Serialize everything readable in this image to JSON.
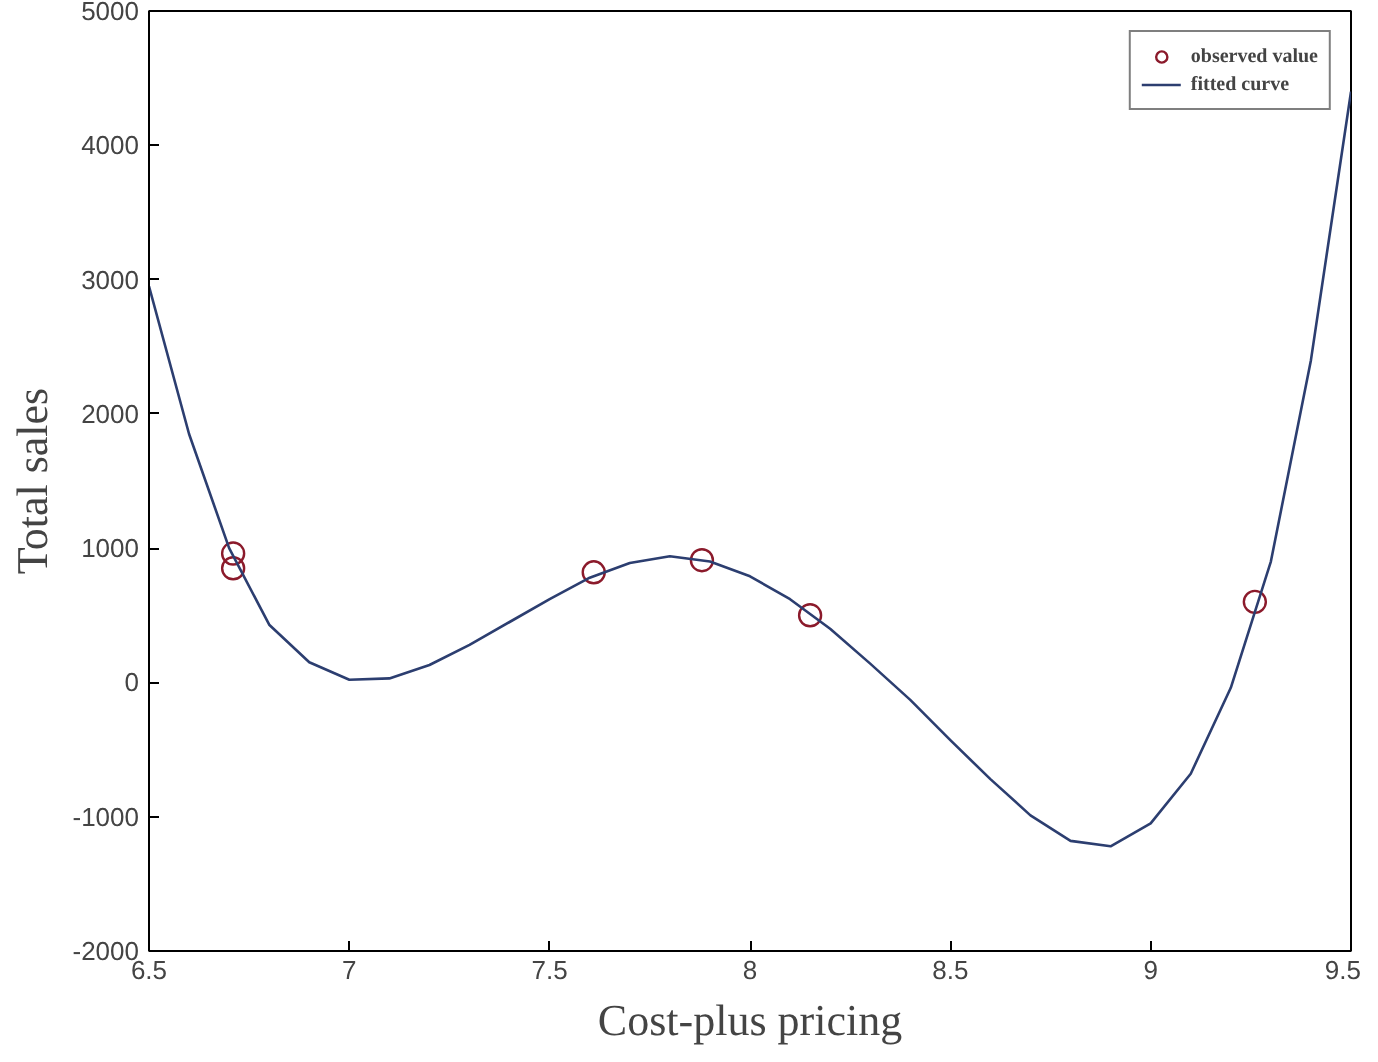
{
  "chart_data": {
    "type": "scatter",
    "xlabel": "Cost-plus pricing",
    "ylabel": "Total sales",
    "xlim": [
      6.5,
      9.5
    ],
    "ylim": [
      -2000,
      5000
    ],
    "xticks": [
      6.5,
      7,
      7.5,
      8,
      8.5,
      9,
      9.5
    ],
    "yticks": [
      -2000,
      -1000,
      0,
      1000,
      2000,
      3000,
      4000,
      5000
    ],
    "grid": false,
    "legend": "top right",
    "series": [
      {
        "name": "observed value",
        "marker": "circle",
        "color": "#8b1a2b",
        "x": [
          6.71,
          6.71,
          7.61,
          7.88,
          8.15,
          9.26
        ],
        "values": [
          960,
          850,
          820,
          910,
          500,
          600
        ]
      },
      {
        "name": "fitted curve",
        "type": "line",
        "line_style": "solid",
        "marker": "none",
        "color": "#2c3e70",
        "x": [
          6.5,
          6.6,
          6.7,
          6.8,
          6.9,
          7.0,
          7.1,
          7.2,
          7.3,
          7.4,
          7.5,
          7.6,
          7.7,
          7.8,
          7.9,
          8.0,
          8.1,
          8.2,
          8.3,
          8.4,
          8.5,
          8.6,
          8.7,
          8.8,
          8.9,
          9.0,
          9.1,
          9.2,
          9.3,
          9.4,
          9.5
        ],
        "values": [
          2950,
          1850,
          1000,
          430,
          150,
          20,
          30,
          130,
          280,
          450,
          620,
          780,
          890,
          940,
          900,
          790,
          620,
          400,
          140,
          -130,
          -430,
          -720,
          -990,
          -1180,
          -1220,
          -1050,
          -680,
          -40,
          900,
          2400,
          4400
        ]
      }
    ]
  }
}
